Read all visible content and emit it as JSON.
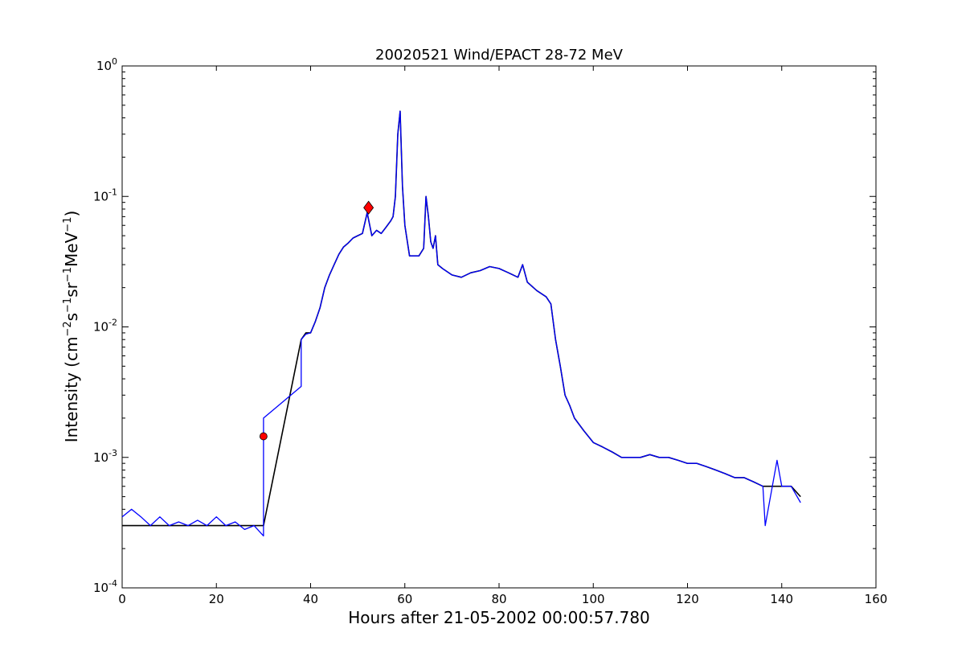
{
  "chart_data": {
    "type": "line",
    "title": "20020521 Wind/EPACT 28-72 MeV",
    "xlabel": "Hours after 21-05-2002 00:00:57.780",
    "ylabel": {
      "prefix": "Intensity (cm",
      "parts": [
        {
          "base": "",
          "sup": "−2"
        },
        {
          "base": "s",
          "sup": "−1"
        },
        {
          "base": "sr",
          "sup": "−1"
        },
        {
          "base": "MeV",
          "sup": "−1"
        }
      ],
      "suffix": ")"
    },
    "x_axis": {
      "range": [
        0,
        160
      ],
      "ticks": [
        0,
        20,
        40,
        60,
        80,
        100,
        120,
        140,
        160
      ],
      "tick_labels": [
        "0",
        "20",
        "40",
        "60",
        "80",
        "100",
        "120",
        "140",
        "160"
      ]
    },
    "y_axis": {
      "scale": "log",
      "range": [
        0.0001,
        1
      ],
      "ticks": [
        0.0001,
        0.001,
        0.01,
        0.1,
        1
      ],
      "tick_labels": [
        {
          "base": "10",
          "exp": "-4"
        },
        {
          "base": "10",
          "exp": "-3"
        },
        {
          "base": "10",
          "exp": "-2"
        },
        {
          "base": "10",
          "exp": "-1"
        },
        {
          "base": "10",
          "exp": "0"
        }
      ]
    },
    "grid": false,
    "legend": "none",
    "series": [
      {
        "role": "raw",
        "color": "#000000",
        "x": [
          0,
          2,
          4,
          6,
          8,
          10,
          12,
          14,
          16,
          18,
          20,
          22,
          24,
          26,
          28,
          30,
          38,
          39,
          40,
          41,
          42,
          43,
          44,
          45,
          46,
          47,
          48,
          49,
          50,
          51,
          52,
          53,
          54,
          55,
          56,
          57,
          57.5,
          58,
          58.5,
          59,
          59.5,
          60,
          61,
          62,
          63,
          64,
          64.5,
          65,
          65.5,
          66,
          66.5,
          67,
          68,
          70,
          72,
          74,
          76,
          78,
          80,
          82,
          84,
          85,
          86,
          88,
          90,
          91,
          92,
          93,
          94,
          95,
          96,
          98,
          100,
          102,
          104,
          106,
          108,
          110,
          112,
          114,
          116,
          118,
          120,
          122,
          124,
          126,
          128,
          130,
          132,
          134,
          136,
          137,
          138,
          139,
          140,
          142,
          144
        ],
        "y": [
          0.0003,
          0.0003,
          0.0003,
          0.0003,
          0.0003,
          0.0003,
          0.0003,
          0.0003,
          0.0003,
          0.0003,
          0.0003,
          0.0003,
          0.0003,
          0.0003,
          0.0003,
          0.0003,
          0.008,
          0.009,
          0.009,
          0.011,
          0.014,
          0.02,
          0.025,
          0.03,
          0.036,
          0.041,
          0.044,
          0.048,
          0.05,
          0.052,
          0.075,
          0.05,
          0.055,
          0.052,
          0.058,
          0.065,
          0.07,
          0.1,
          0.3,
          0.45,
          0.12,
          0.06,
          0.035,
          0.035,
          0.035,
          0.04,
          0.1,
          0.07,
          0.045,
          0.04,
          0.05,
          0.03,
          0.028,
          0.025,
          0.024,
          0.026,
          0.027,
          0.029,
          0.028,
          0.026,
          0.024,
          0.03,
          0.022,
          0.019,
          0.017,
          0.015,
          0.008,
          0.005,
          0.003,
          0.0025,
          0.002,
          0.0016,
          0.0013,
          0.0012,
          0.0011,
          0.001,
          0.001,
          0.001,
          0.00105,
          0.001,
          0.001,
          0.00095,
          0.0009,
          0.0009,
          0.00085,
          0.0008,
          0.00075,
          0.0007,
          0.0007,
          0.00065,
          0.0006,
          0.0006,
          0.0006,
          0.0006,
          0.0006,
          0.0006,
          0.0005
        ]
      },
      {
        "role": "smoothed",
        "color": "#0000ff",
        "x": [
          0,
          2,
          4,
          6,
          8,
          10,
          12,
          14,
          16,
          18,
          20,
          22,
          24,
          26,
          28,
          30,
          30,
          38,
          38,
          39,
          40,
          41,
          42,
          43,
          44,
          45,
          46,
          47,
          48,
          49,
          50,
          51,
          52,
          53,
          54,
          55,
          56,
          57,
          57.5,
          58,
          58.5,
          59,
          59.5,
          60,
          61,
          62,
          63,
          64,
          64.5,
          65,
          65.5,
          66,
          66.5,
          67,
          68,
          70,
          72,
          74,
          76,
          78,
          80,
          82,
          84,
          85,
          86,
          88,
          90,
          91,
          92,
          93,
          94,
          95,
          96,
          98,
          100,
          102,
          104,
          106,
          108,
          110,
          112,
          114,
          116,
          118,
          120,
          122,
          124,
          126,
          128,
          130,
          132,
          134,
          136,
          136.5,
          139,
          140,
          142,
          144
        ],
        "y": [
          0.00035,
          0.0004,
          0.00035,
          0.0003,
          0.00035,
          0.0003,
          0.00032,
          0.0003,
          0.00033,
          0.0003,
          0.00035,
          0.0003,
          0.00032,
          0.00028,
          0.0003,
          0.00025,
          0.002,
          0.0035,
          0.008,
          0.0088,
          0.009,
          0.011,
          0.014,
          0.02,
          0.025,
          0.03,
          0.036,
          0.041,
          0.044,
          0.048,
          0.05,
          0.052,
          0.075,
          0.05,
          0.055,
          0.052,
          0.058,
          0.065,
          0.07,
          0.1,
          0.3,
          0.45,
          0.12,
          0.06,
          0.035,
          0.035,
          0.035,
          0.04,
          0.1,
          0.07,
          0.045,
          0.04,
          0.05,
          0.03,
          0.028,
          0.025,
          0.024,
          0.026,
          0.027,
          0.029,
          0.028,
          0.026,
          0.024,
          0.03,
          0.022,
          0.019,
          0.017,
          0.015,
          0.008,
          0.005,
          0.003,
          0.0025,
          0.002,
          0.0016,
          0.0013,
          0.0012,
          0.0011,
          0.001,
          0.001,
          0.001,
          0.00105,
          0.001,
          0.001,
          0.00095,
          0.0009,
          0.0009,
          0.00085,
          0.0008,
          0.00075,
          0.0007,
          0.0007,
          0.00065,
          0.0006,
          0.0003,
          0.00095,
          0.0006,
          0.0006,
          0.00045
        ]
      }
    ],
    "markers": [
      {
        "x": 30,
        "y": 0.00145,
        "shape": "circle",
        "color": "#ff0000"
      },
      {
        "x": 52.3,
        "y": 0.082,
        "shape": "diamond",
        "color": "#ff0000"
      }
    ]
  }
}
